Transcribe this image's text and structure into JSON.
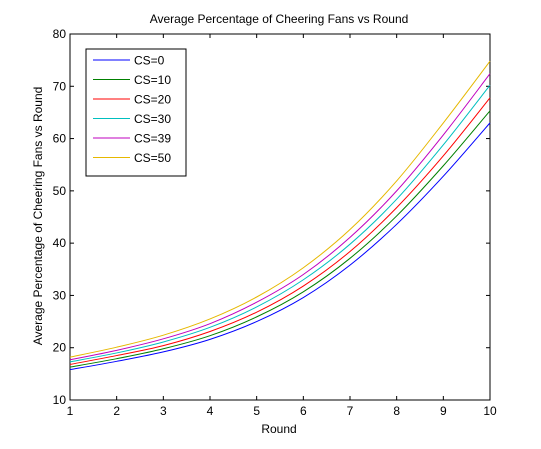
{
  "chart_data": {
    "type": "line",
    "title": "Average Percentage of Cheering Fans vs Round",
    "xlabel": "Round",
    "ylabel": "Average Percentage of Cheering Fans vs Round",
    "xlim": [
      1,
      10
    ],
    "ylim": [
      10,
      80
    ],
    "xticks": [
      1,
      2,
      3,
      4,
      5,
      6,
      7,
      8,
      9,
      10
    ],
    "yticks": [
      10,
      20,
      30,
      40,
      50,
      60,
      70,
      80
    ],
    "grid": false,
    "legend_position": "top-left",
    "x": [
      1,
      2,
      3,
      4,
      5,
      6,
      7,
      8,
      9,
      10
    ],
    "series": [
      {
        "name": "CS=0",
        "color": "#0000ff",
        "values": [
          15.8,
          17.4,
          19.2,
          21.6,
          25.0,
          29.6,
          35.8,
          43.6,
          52.8,
          63.0
        ]
      },
      {
        "name": "CS=10",
        "color": "#008000",
        "values": [
          16.3,
          17.9,
          19.8,
          22.3,
          25.9,
          30.7,
          37.1,
          45.2,
          54.8,
          65.3
        ]
      },
      {
        "name": "CS=20",
        "color": "#ff0000",
        "values": [
          16.8,
          18.5,
          20.4,
          23.1,
          26.8,
          31.8,
          38.4,
          46.8,
          56.7,
          67.8
        ]
      },
      {
        "name": "CS=30",
        "color": "#00bfbf",
        "values": [
          17.3,
          19.0,
          21.1,
          23.9,
          27.8,
          33.0,
          39.8,
          48.4,
          58.8,
          70.2
        ]
      },
      {
        "name": "CS=39",
        "color": "#bf00bf",
        "values": [
          17.7,
          19.5,
          21.7,
          24.6,
          28.7,
          34.0,
          41.1,
          50.0,
          60.7,
          72.4
        ]
      },
      {
        "name": "CS=50",
        "color": "#e6b800",
        "values": [
          18.2,
          20.1,
          22.4,
          25.5,
          29.7,
          35.3,
          42.6,
          51.9,
          63.0,
          74.8
        ]
      }
    ]
  }
}
